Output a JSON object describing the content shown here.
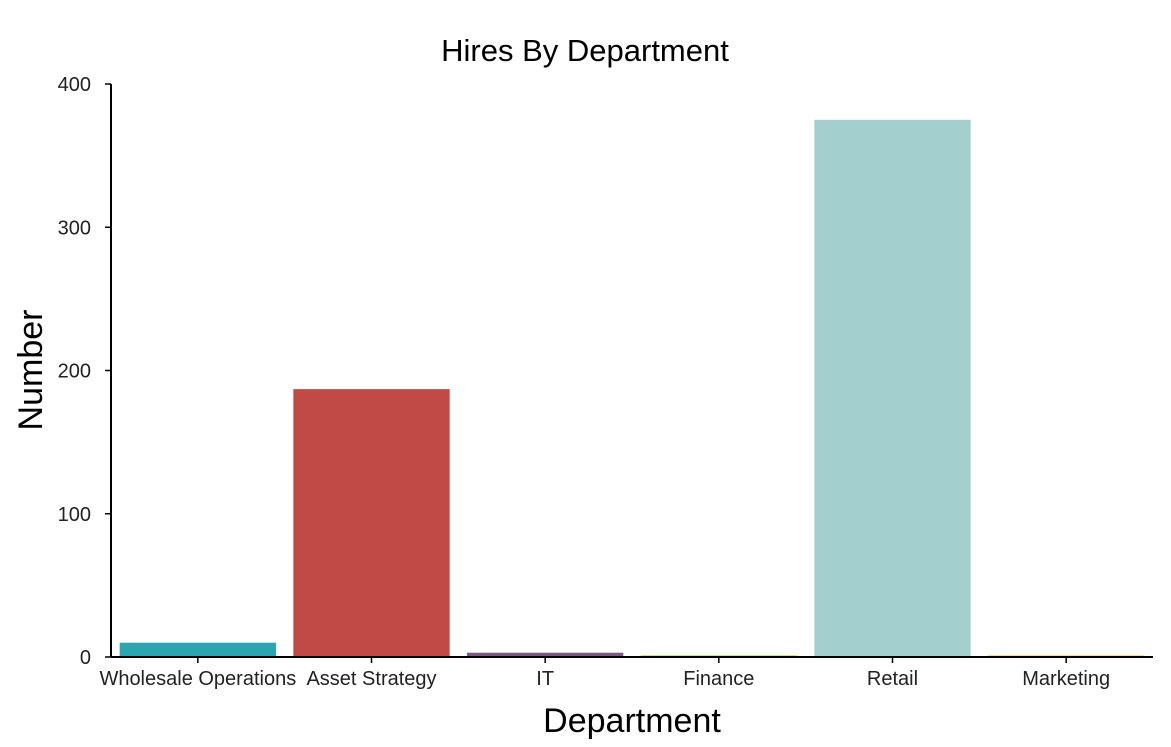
{
  "chart_data": {
    "type": "bar",
    "title": "Hires By Department",
    "xlabel": "Department",
    "ylabel": "Number",
    "categories": [
      "Wholesale Operations",
      "Asset Strategy",
      "IT",
      "Finance",
      "Retail",
      "Marketing"
    ],
    "values": [
      10,
      187,
      3,
      1,
      375,
      1
    ],
    "colors": [
      "#2ca5b1",
      "#c14a46",
      "#7b5b82",
      "#8ec63f",
      "#a3cfce",
      "#e4b84a"
    ],
    "ylim": [
      0,
      400
    ],
    "yticks": [
      0,
      100,
      200,
      300,
      400
    ],
    "grid": false,
    "legend": "none"
  }
}
